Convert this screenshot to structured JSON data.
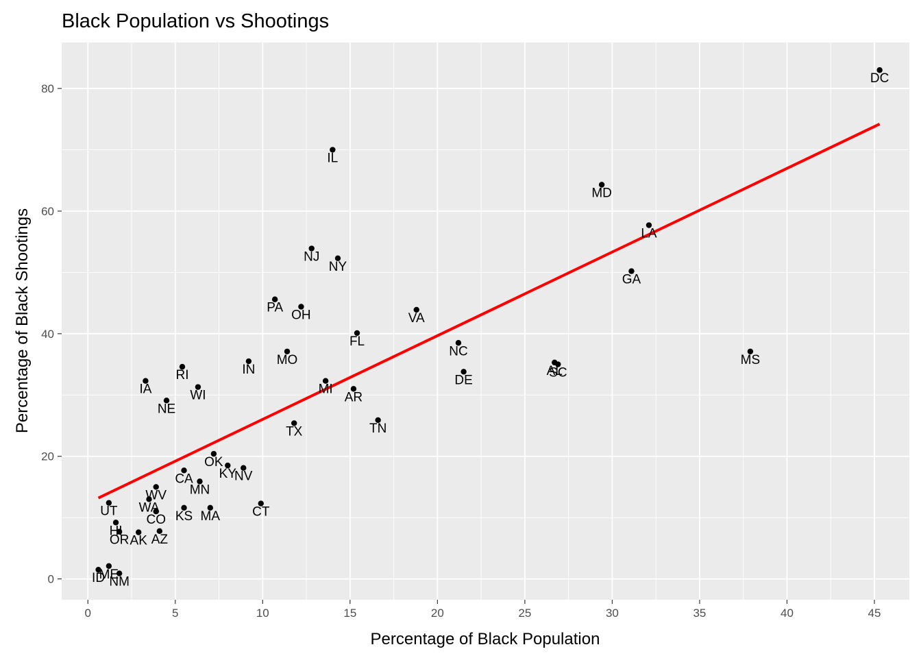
{
  "chart_data": {
    "type": "scatter",
    "title": "Black Population vs Shootings",
    "xlabel": "Percentage of Black Population",
    "ylabel": "Percentage of Black Shootings",
    "xlim": [
      -1.5,
      47
    ],
    "ylim": [
      -3.4,
      87.5
    ],
    "x_ticks": [
      0,
      5,
      10,
      15,
      20,
      25,
      30,
      35,
      40,
      45
    ],
    "y_ticks": [
      0,
      20,
      40,
      60,
      80
    ],
    "grid": true,
    "background": "#ebebeb",
    "point_color": "#000000",
    "trend_color": "#ff0000",
    "trend_line": {
      "x": [
        0.6,
        45.3
      ],
      "y": [
        13.2,
        74.2
      ]
    },
    "points": [
      {
        "label": "DC",
        "x": 45.3,
        "y": 83.0
      },
      {
        "label": "IL",
        "x": 14.0,
        "y": 70.0
      },
      {
        "label": "MD",
        "x": 29.4,
        "y": 64.3
      },
      {
        "label": "LA",
        "x": 32.1,
        "y": 57.7
      },
      {
        "label": "NJ",
        "x": 12.8,
        "y": 53.9
      },
      {
        "label": "NY",
        "x": 14.3,
        "y": 52.3
      },
      {
        "label": "GA",
        "x": 31.1,
        "y": 50.2
      },
      {
        "label": "PA",
        "x": 10.7,
        "y": 45.6
      },
      {
        "label": "OH",
        "x": 12.2,
        "y": 44.4
      },
      {
        "label": "VA",
        "x": 18.8,
        "y": 43.9
      },
      {
        "label": "FL",
        "x": 15.4,
        "y": 40.1
      },
      {
        "label": "NC",
        "x": 21.2,
        "y": 38.5
      },
      {
        "label": "MO",
        "x": 11.4,
        "y": 37.1
      },
      {
        "label": "MS",
        "x": 37.9,
        "y": 37.1
      },
      {
        "label": "IN",
        "x": 9.2,
        "y": 35.5
      },
      {
        "label": "AL",
        "x": 26.7,
        "y": 35.3
      },
      {
        "label": "SC",
        "x": 26.9,
        "y": 35.0
      },
      {
        "label": "RI",
        "x": 5.4,
        "y": 34.6
      },
      {
        "label": "DE",
        "x": 21.5,
        "y": 33.8
      },
      {
        "label": "IA",
        "x": 3.3,
        "y": 32.3
      },
      {
        "label": "MI",
        "x": 13.6,
        "y": 32.3
      },
      {
        "label": "WI",
        "x": 6.3,
        "y": 31.3
      },
      {
        "label": "AR",
        "x": 15.2,
        "y": 31.0
      },
      {
        "label": "NE",
        "x": 4.5,
        "y": 29.1
      },
      {
        "label": "TN",
        "x": 16.6,
        "y": 25.9
      },
      {
        "label": "TX",
        "x": 11.8,
        "y": 25.4
      },
      {
        "label": "OK",
        "x": 7.2,
        "y": 20.4
      },
      {
        "label": "KY",
        "x": 8.0,
        "y": 18.5
      },
      {
        "label": "NV",
        "x": 8.9,
        "y": 18.1
      },
      {
        "label": "CA",
        "x": 5.5,
        "y": 17.7
      },
      {
        "label": "MN",
        "x": 6.4,
        "y": 15.9
      },
      {
        "label": "WV",
        "x": 3.9,
        "y": 15.0
      },
      {
        "label": "WA",
        "x": 3.5,
        "y": 13.0
      },
      {
        "label": "UT",
        "x": 1.2,
        "y": 12.4
      },
      {
        "label": "CT",
        "x": 9.9,
        "y": 12.3
      },
      {
        "label": "KS",
        "x": 5.5,
        "y": 11.6
      },
      {
        "label": "MA",
        "x": 7.0,
        "y": 11.6
      },
      {
        "label": "CO",
        "x": 3.9,
        "y": 11.0
      },
      {
        "label": "HI",
        "x": 1.6,
        "y": 9.2
      },
      {
        "label": "AZ",
        "x": 4.1,
        "y": 7.8
      },
      {
        "label": "OR",
        "x": 1.8,
        "y": 7.7
      },
      {
        "label": "AK",
        "x": 2.9,
        "y": 7.6
      },
      {
        "label": "ME",
        "x": 1.2,
        "y": 2.1
      },
      {
        "label": "ID",
        "x": 0.6,
        "y": 1.5
      },
      {
        "label": "NM",
        "x": 1.8,
        "y": 0.9
      }
    ]
  }
}
